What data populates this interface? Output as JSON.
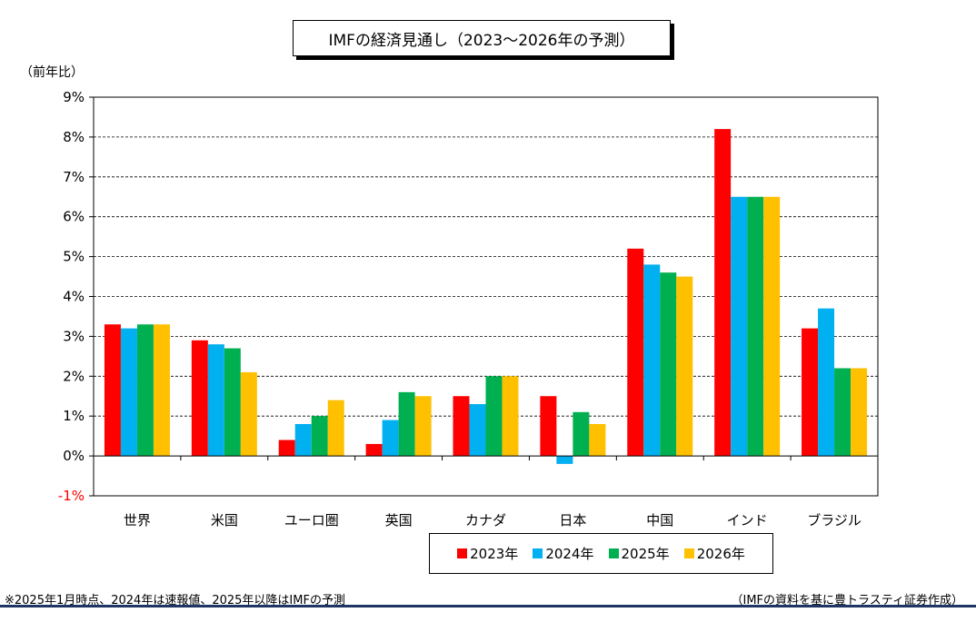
{
  "chart_data": {
    "type": "bar",
    "title": "IMFの経済見通し（2023～2026年の予測）",
    "ylabel": "（前年比）",
    "ylim": [
      -1,
      9
    ],
    "yticks": [
      "-1%",
      "0%",
      "1%",
      "2%",
      "3%",
      "4%",
      "5%",
      "6%",
      "7%",
      "8%",
      "9%"
    ],
    "grid": true,
    "legend_position": "bottom",
    "categories": [
      "世界",
      "米国",
      "ユーロ圏",
      "英国",
      "カナダ",
      "日本",
      "中国",
      "インド",
      "ブラジル"
    ],
    "series": [
      {
        "name": "2023年",
        "color": "#ff0000",
        "values": [
          3.3,
          2.9,
          0.4,
          0.3,
          1.5,
          1.5,
          5.2,
          8.2,
          3.2
        ]
      },
      {
        "name": "2024年",
        "color": "#00b0f0",
        "values": [
          3.2,
          2.8,
          0.8,
          0.9,
          1.3,
          -0.2,
          4.8,
          6.5,
          3.7
        ]
      },
      {
        "name": "2025年",
        "color": "#00b050",
        "values": [
          3.3,
          2.7,
          1.0,
          1.6,
          2.0,
          1.1,
          4.6,
          6.5,
          2.2
        ]
      },
      {
        "name": "2026年",
        "color": "#ffc000",
        "values": [
          3.3,
          2.1,
          1.4,
          1.5,
          2.0,
          0.8,
          4.5,
          6.5,
          2.2
        ]
      }
    ],
    "negative_tick_color": "#ff0000"
  },
  "footnote": "※2025年1月時点、2024年は速報値、2025年以降はIMFの予測",
  "source": "（IMFの資料を基に豊トラスティ証券作成）",
  "colors": {
    "bottom_rule": "#1f3563",
    "grid": "#000000"
  }
}
